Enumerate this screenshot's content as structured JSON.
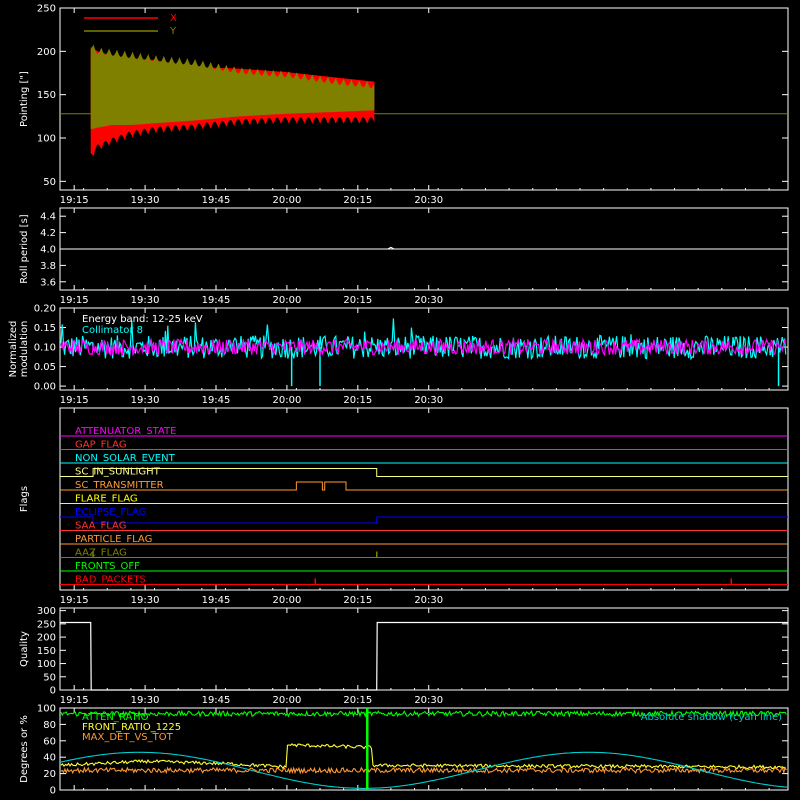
{
  "chart_data": [
    {
      "type": "area",
      "panel": "pointing",
      "ylabel": "Pointing [\"]",
      "yticks": [
        "50",
        "100",
        "150",
        "200",
        "250"
      ],
      "ylim": [
        40,
        250
      ],
      "xlim_min": [
        1152,
        1306
      ],
      "xticks": [
        "19:15",
        "19:30",
        "19:45",
        "20:00",
        "20:15",
        "20:30"
      ],
      "xticks_min": [
        1155,
        1170,
        1185,
        1200,
        1215,
        1230
      ],
      "legend": {
        "placement": "top-left"
      },
      "series": [
        {
          "name": "X",
          "color": "#ff0000",
          "band_x_min": [
            1158.5,
            1160,
            1163,
            1167,
            1172,
            1180,
            1190,
            1200,
            1210,
            1218.5
          ],
          "band_upper": [
            205,
            200,
            195,
            192,
            190,
            182,
            180,
            176,
            170,
            165
          ],
          "band_lower": [
            75,
            85,
            92,
            100,
            105,
            108,
            114,
            116,
            116,
            116
          ]
        },
        {
          "name": "Y",
          "color": "#808000",
          "band_x_min": [
            1158.5,
            1160,
            1163,
            1167,
            1172,
            1180,
            1190,
            1200,
            1210,
            1218.5
          ],
          "band_upper": [
            210,
            205,
            203,
            200,
            196,
            192,
            182,
            178,
            170,
            165
          ],
          "band_lower": [
            110,
            112,
            115,
            115,
            117,
            120,
            125,
            128,
            130,
            132
          ]
        }
      ],
      "baseline": 128
    },
    {
      "type": "line",
      "panel": "roll",
      "ylabel": "Roll period [s]",
      "yticks": [
        "3.6",
        "3.8",
        "4.0",
        "4.2",
        "4.4"
      ],
      "ylim": [
        3.5,
        4.5
      ],
      "xticks": [
        "19:15",
        "19:30",
        "19:45",
        "20:00",
        "20:15",
        "20:30"
      ],
      "series": [
        {
          "name": "",
          "color": "#ffffff",
          "values": [
            4.0
          ],
          "blip_x_min": 1222,
          "blip_y": 4.02
        }
      ]
    },
    {
      "type": "line",
      "panel": "modulation",
      "ylabel": "Normalized modulation",
      "yticks": [
        "0.00",
        "0.05",
        "0.10",
        "0.15",
        "0.20"
      ],
      "ylim": [
        -0.01,
        0.2
      ],
      "xticks": [
        "19:15",
        "19:30",
        "19:45",
        "20:00",
        "20:15",
        "20:30"
      ],
      "annotations": [
        "Energy band: 12-25 keV",
        "Collimator 8"
      ],
      "series": [
        {
          "name": "Collimator 8",
          "color": "#00ffff",
          "mean": 0.1,
          "spread": 0.03,
          "dips_x_min": [
            1201,
            1207,
            1304
          ],
          "dips_y": [
            0.0,
            0.0,
            0.0
          ]
        },
        {
          "name": "",
          "color": "#ff00ff",
          "mean": 0.1,
          "spread": 0.02
        }
      ]
    },
    {
      "type": "line",
      "panel": "flags",
      "ylabel": "Flags",
      "xticks": [
        "19:15",
        "19:30",
        "19:45",
        "20:00",
        "20:15",
        "20:30"
      ],
      "flags": [
        {
          "name": "ATTENUATOR_STATE",
          "color": "#ff00ff"
        },
        {
          "name": "GAP_FLAG",
          "color": "#ff3333"
        },
        {
          "name": "NON_SOLAR_EVENT",
          "color": "#00ffff"
        },
        {
          "name": "SC_IN_SUNLIGHT",
          "color": "#ffff88",
          "high": [
            [
              1159,
              1219
            ]
          ]
        },
        {
          "name": "SC_TRANSMITTER",
          "color": "#ff9933",
          "high": [
            [
              1202,
              1207.5
            ],
            [
              1208,
              1212.5
            ]
          ]
        },
        {
          "name": "FLARE_FLAG",
          "color": "#ffff00"
        },
        {
          "name": "ECLIPSE_FLAG",
          "color": "#0000ff",
          "low": [
            [
              1159,
              1219
            ]
          ]
        },
        {
          "name": "SAA_FLAG",
          "color": "#ff3333"
        },
        {
          "name": "PARTICLE_FLAG",
          "color": "#ff9933"
        },
        {
          "name": "AAZ_FLAG",
          "color": "#808000",
          "spikes_x_min": [
            1159,
            1219
          ]
        },
        {
          "name": "FRONTS_OFF",
          "color": "#00ff00"
        },
        {
          "name": "BAD_PACKETS",
          "color": "#ff0000",
          "spikes_x_min": [
            1206,
            1294
          ]
        }
      ]
    },
    {
      "type": "line",
      "panel": "quality",
      "ylabel": "Quality",
      "yticks": [
        "0",
        "50",
        "100",
        "150",
        "200",
        "250",
        "300"
      ],
      "ylim": [
        0,
        310
      ],
      "xticks": [
        "19:15",
        "19:30",
        "19:45",
        "20:00",
        "20:15",
        "20:30"
      ],
      "series": [
        {
          "name": "",
          "color": "#ffffff",
          "x_min": [
            1152,
            1158.5,
            1158.6,
            1219,
            1219.1,
            1306
          ],
          "values": [
            255,
            255,
            0,
            0,
            255,
            255
          ]
        }
      ]
    },
    {
      "type": "line",
      "panel": "ratios",
      "ylabel": "Degrees or %",
      "yticks": [
        "0",
        "20",
        "40",
        "60",
        "80",
        "100"
      ],
      "ylim": [
        0,
        100
      ],
      "xticks": [
        "19:15",
        "19:30",
        "19:45",
        "20:00",
        "20:15",
        "20:30"
      ],
      "right_note": "Absolute shadow (cyan line)",
      "series": [
        {
          "name": "ATTEN_RATIO",
          "color": "#00ff00",
          "mean": 93,
          "spread": 3
        },
        {
          "name": "FRONT_RATIO_1225",
          "color": "#ffff33",
          "x_min": [
            1152,
            1170,
            1188,
            1200,
            1200.1,
            1218,
            1218.1,
            1306
          ],
          "values": [
            30,
            35,
            32,
            28,
            55,
            52,
            30,
            28
          ],
          "spread": 2
        },
        {
          "name": "MAX_DET_VS_TOT",
          "color": "#ff9933",
          "mean": 24,
          "spread": 3
        },
        {
          "name": "",
          "color": "#00cccc",
          "shape": "sine",
          "period_min": 95,
          "amplitude": 22,
          "offset": 24
        }
      ],
      "vline_x_min": 1217,
      "vline_color": "#00ff00"
    }
  ]
}
